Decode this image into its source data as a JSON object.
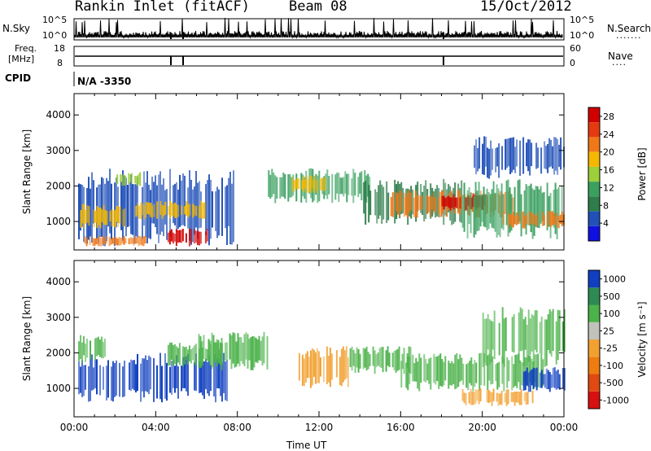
{
  "header": {
    "station": "Rankin Inlet (fitACF)",
    "beam": "Beam 08",
    "date": "15/Oct/2012"
  },
  "strips": {
    "nsky_label": "N.Sky",
    "nsky_ticks": [
      "10^5",
      "10^0"
    ],
    "nsearch_label": "N.Search",
    "nsearch_ticks": [
      "10^5",
      "10^0"
    ],
    "freq_label_1": "Freq.",
    "freq_label_2": "[MHz]",
    "freq_ticks": [
      "18",
      "8"
    ],
    "nave_label": "Nave",
    "nave_ticks": [
      "60",
      "0"
    ],
    "cpid_label": "CPID",
    "cpid_value": "N/A -3350"
  },
  "colors": {
    "power": [
      "#1010e0",
      "#2050b8",
      "#2e7d4a",
      "#3aa060",
      "#9ccf3a",
      "#f5b800",
      "#f07818",
      "#e43a10",
      "#d00000"
    ],
    "velocity": [
      "#1040c0",
      "#2e8a52",
      "#4cb24a",
      "#c2c2bc",
      "#f2a030",
      "#ee7c10",
      "#e04a10",
      "#d81010"
    ]
  },
  "chart_data": [
    {
      "type": "heatmap",
      "name": "power",
      "xlabel": "",
      "ylabel": "Slant Range [km]",
      "xlim": [
        "00:00",
        "24:00"
      ],
      "ylim": [
        200,
        4600
      ],
      "x_ticks": [
        "00:00",
        "04:00",
        "08:00",
        "12:00",
        "16:00",
        "20:00",
        "00:00"
      ],
      "y_ticks": [
        1000,
        2000,
        3000,
        4000
      ],
      "colorbar_label": "Power [dB]",
      "colorbar_ticks": [
        4,
        8,
        12,
        16,
        20,
        24,
        28
      ],
      "colorbar_range": [
        0,
        30
      ],
      "regions": [
        {
          "t0": 0.2,
          "t1": 7.8,
          "r0": 300,
          "r1": 2500,
          "level": 2
        },
        {
          "t0": 0.3,
          "t1": 2.5,
          "r0": 800,
          "r1": 1500,
          "level": 6
        },
        {
          "t0": 3.0,
          "t1": 6.5,
          "r0": 1050,
          "r1": 1600,
          "level": 6
        },
        {
          "t0": 4.5,
          "t1": 6.5,
          "r0": 300,
          "r1": 800,
          "level": 9
        },
        {
          "t0": 0.5,
          "t1": 3.5,
          "r0": 300,
          "r1": 600,
          "level": 7
        },
        {
          "t0": 2.0,
          "t1": 3.2,
          "r0": 2000,
          "r1": 2400,
          "level": 5
        },
        {
          "t0": 9.5,
          "t1": 14.5,
          "r0": 1500,
          "r1": 2500,
          "level": 4
        },
        {
          "t0": 10.5,
          "t1": 12.3,
          "r0": 1800,
          "r1": 2300,
          "level": 6
        },
        {
          "t0": 14.0,
          "t1": 19.0,
          "r0": 900,
          "r1": 2200,
          "level": 3
        },
        {
          "t0": 15.5,
          "t1": 21.5,
          "r0": 1100,
          "r1": 1900,
          "level": 7
        },
        {
          "t0": 18.0,
          "t1": 20.2,
          "r0": 1300,
          "r1": 1800,
          "level": 9
        },
        {
          "t0": 19.0,
          "t1": 24.0,
          "r0": 500,
          "r1": 2200,
          "level": 4
        },
        {
          "t0": 21.0,
          "t1": 24.0,
          "r0": 800,
          "r1": 1300,
          "level": 7
        },
        {
          "t0": 19.5,
          "t1": 24.0,
          "r0": 2200,
          "r1": 3400,
          "level": 2
        }
      ]
    },
    {
      "type": "heatmap",
      "name": "velocity",
      "xlabel": "Time UT",
      "ylabel": "Slant Range [km]",
      "xlim": [
        "00:00",
        "24:00"
      ],
      "ylim": [
        200,
        4600
      ],
      "x_ticks": [
        "00:00",
        "04:00",
        "08:00",
        "12:00",
        "16:00",
        "20:00",
        "00:00"
      ],
      "y_ticks": [
        1000,
        2000,
        3000,
        4000
      ],
      "colorbar_label": "Velocity [m s⁻¹]",
      "colorbar_ticks": [
        "1000",
        "500",
        "100",
        "25",
        "-25",
        "-100",
        "-500",
        "-1000"
      ],
      "regions": [
        {
          "t0": 0.2,
          "t1": 7.5,
          "r0": 600,
          "r1": 2000,
          "level": 1
        },
        {
          "t0": 0.2,
          "t1": 1.5,
          "r0": 1700,
          "r1": 2500,
          "level": 3
        },
        {
          "t0": 4.5,
          "t1": 7.5,
          "r0": 1600,
          "r1": 2300,
          "level": 3
        },
        {
          "t0": 6.0,
          "t1": 9.5,
          "r0": 1500,
          "r1": 2600,
          "level": 3
        },
        {
          "t0": 11.0,
          "t1": 13.5,
          "r0": 1000,
          "r1": 2200,
          "level": 5
        },
        {
          "t0": 13.5,
          "t1": 16.5,
          "r0": 1400,
          "r1": 2200,
          "level": 3
        },
        {
          "t0": 16.0,
          "t1": 23.0,
          "r0": 900,
          "r1": 2000,
          "level": 3
        },
        {
          "t0": 19.0,
          "t1": 22.5,
          "r0": 500,
          "r1": 1000,
          "level": 5
        },
        {
          "t0": 20.0,
          "t1": 24.0,
          "r0": 1600,
          "r1": 3300,
          "level": 3
        },
        {
          "t0": 22.0,
          "t1": 24.0,
          "r0": 900,
          "r1": 1600,
          "level": 1
        }
      ]
    }
  ]
}
